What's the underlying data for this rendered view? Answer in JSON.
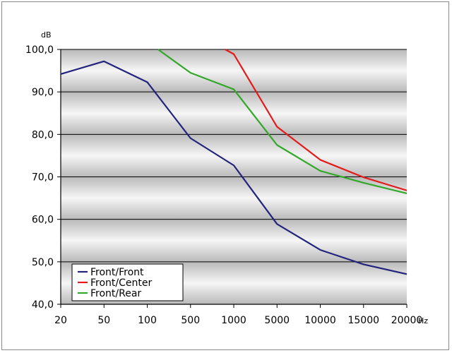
{
  "chart_data": {
    "type": "line",
    "title": "",
    "xlabel": "Hz",
    "ylabel": "dB",
    "categories": [
      "20",
      "50",
      "100",
      "500",
      "1000",
      "5000",
      "10000",
      "15000",
      "20000"
    ],
    "y_ticks": [
      "40,0",
      "50,0",
      "60,0",
      "70,0",
      "80,0",
      "90,0",
      "100,0"
    ],
    "ylim": [
      40,
      100
    ],
    "grid": true,
    "legend_position": "bottom-left",
    "series": [
      {
        "name": "Front/Front",
        "color": "#23237e",
        "values": [
          94.2,
          97.2,
          92.3,
          79.1,
          72.7,
          58.9,
          52.8,
          49.4,
          47.1
        ]
      },
      {
        "name": "Front/Center",
        "color": "#e41b1b",
        "values": [
          null,
          null,
          null,
          null,
          98.9,
          81.8,
          74.0,
          69.9,
          66.8
        ]
      },
      {
        "name": "Front/Rear",
        "color": "#33a829",
        "values": [
          null,
          null,
          null,
          94.5,
          90.6,
          77.5,
          71.4,
          68.6,
          66.1
        ]
      }
    ],
    "offscale_entry": [
      {
        "series": "Front/Center",
        "x": 900,
        "y": 100
      },
      {
        "series": "Front/Rear",
        "x": 200,
        "y": 100
      }
    ]
  }
}
